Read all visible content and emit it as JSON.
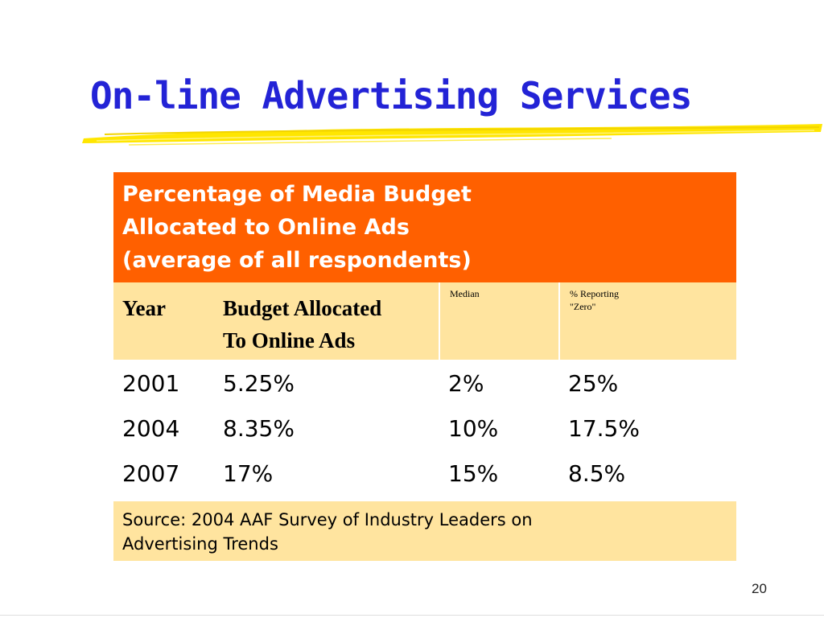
{
  "slide": {
    "title": "On-line Advertising Services",
    "page_number": "20"
  },
  "table": {
    "caption": [
      "Percentage of Media Budget",
      "Allocated to Online Ads",
      "(average of all respondents)"
    ],
    "headers": {
      "year": "Year",
      "budget_line1": "Budget Allocated",
      "budget_line2": "To Online Ads",
      "median": "Median",
      "reporting_line1": "% Reporting",
      "reporting_line2": "\"Zero\""
    },
    "rows": [
      {
        "year": "2001",
        "budget": "5.25%",
        "median": "2%",
        "reporting_zero": "25%"
      },
      {
        "year": "2004",
        "budget": "8.35%",
        "median": "10%",
        "reporting_zero": "17.5%"
      },
      {
        "year": "2007",
        "budget": "17%",
        "median": "15%",
        "reporting_zero": "8.5%"
      }
    ],
    "source_line1": "Source: 2004 AAF Survey of Industry Leaders on",
    "source_line2": "Advertising Trends"
  },
  "colors": {
    "title": "#2323d6",
    "caption_bg": "#ff6000",
    "header_bg": "#ffe49f",
    "underline": "#ffe600"
  }
}
